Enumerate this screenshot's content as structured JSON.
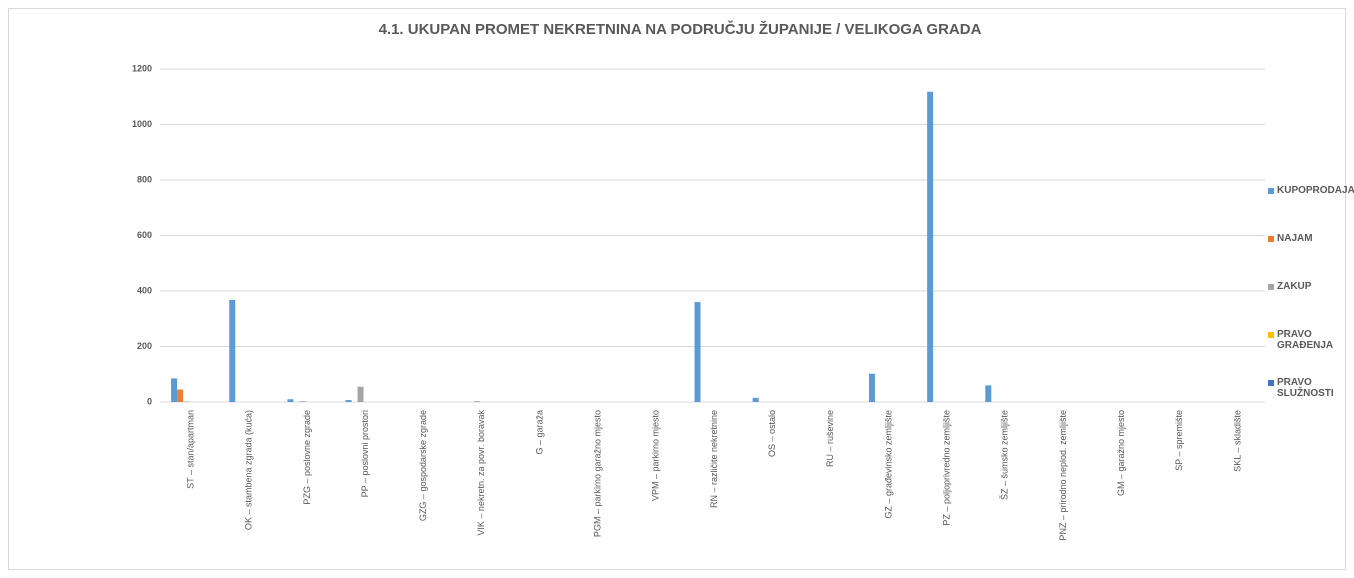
{
  "chart_data": {
    "type": "bar",
    "title": "4.1. UKUPAN PROMET NEKRETNINA NA PODRUČJU ŽUPANIJE /  VELIKOGA GRADA",
    "categories": [
      "ST – stan/apartman",
      "OK – stambena zgrada (kuća)",
      "PZG – poslovne zgrade",
      "PP – poslovni prostori",
      "GZG – gospodarske zgrade",
      "VIK – nekretn. za povr. boravak",
      "G – garaža",
      "PGM – parkirno garažno mjesto",
      "VPM – parkirno mjesto",
      "RN – različite nekretnine",
      "OS – ostalo",
      "RU – ruševine",
      "GZ – građevinsko zemljište",
      "PZ – poljoprivredno zemljište",
      "ŠZ – šumsko zemljište",
      "PNZ – prirodno neplod. zemljište",
      "GM – garažno mjesto",
      "SP – spremište",
      "SKL – skladište"
    ],
    "series": [
      {
        "name": "KUPOPRODAJA",
        "color": "#5b9bd5",
        "values": [
          85,
          368,
          10,
          7,
          0,
          0,
          0,
          0,
          0,
          360,
          15,
          0,
          102,
          1118,
          60,
          0,
          0,
          0,
          0
        ]
      },
      {
        "name": "NAJAM",
        "color": "#ed7d31",
        "values": [
          45,
          0,
          0,
          0,
          0,
          0,
          0,
          0,
          0,
          0,
          0,
          0,
          0,
          0,
          0,
          0,
          0,
          0,
          0
        ]
      },
      {
        "name": "ZAKUP",
        "color": "#a5a5a5",
        "values": [
          2,
          0,
          3,
          55,
          0,
          3,
          0,
          0,
          0,
          0,
          0,
          0,
          0,
          0,
          0,
          0,
          0,
          0,
          0
        ]
      },
      {
        "name": "PRAVO GRAĐENJA",
        "color": "#ffc000",
        "values": [
          0,
          0,
          0,
          0,
          0,
          0,
          0,
          0,
          0,
          0,
          0,
          0,
          0,
          0,
          0,
          0,
          0,
          0,
          0
        ]
      },
      {
        "name": "PRAVO SLUŽNOSTI",
        "color": "#4472c4",
        "values": [
          0,
          0,
          0,
          0,
          0,
          0,
          0,
          0,
          0,
          0,
          0,
          0,
          0,
          0,
          0,
          0,
          0,
          0,
          0
        ]
      }
    ],
    "ylim": [
      0,
      1200
    ],
    "yticks": [
      0,
      200,
      400,
      600,
      800,
      1000,
      1200
    ],
    "grid": true,
    "legend": "right"
  }
}
